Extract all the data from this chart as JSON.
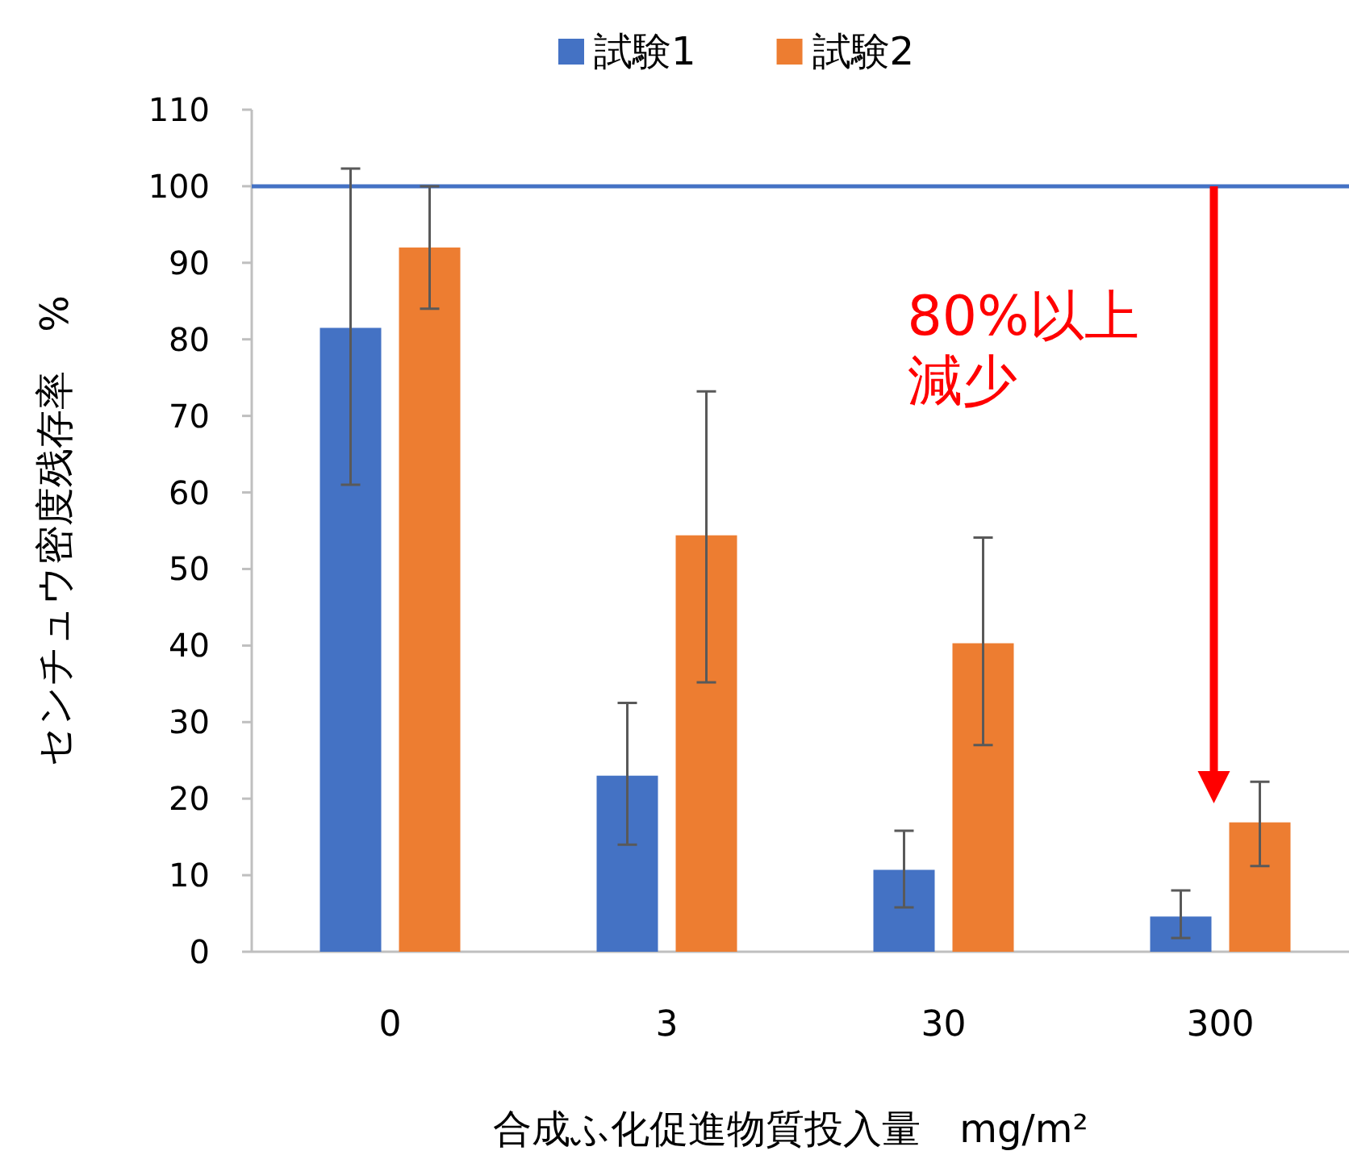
{
  "chart_data": {
    "type": "bar",
    "xlabel": "合成ふ化促進物質投入量　mg/m²",
    "ylabel": "センチュウ密度残存率　%",
    "categories": [
      "0",
      "3",
      "30",
      "300"
    ],
    "series": [
      {
        "name": "試験1",
        "color": "#4472c4",
        "values": [
          81.5,
          23,
          10.7,
          4.6
        ],
        "errors": [
          [
            61,
            102.3
          ],
          [
            14,
            32.5
          ],
          [
            5.8,
            15.8
          ],
          [
            1.8,
            8
          ]
        ]
      },
      {
        "name": "試験2",
        "color": "#ed7d31",
        "values": [
          92,
          54.4,
          40.3,
          16.9
        ],
        "errors": [
          [
            84,
            100
          ],
          [
            35.2,
            73.2
          ],
          [
            27,
            54.1
          ],
          [
            11.2,
            22.2
          ]
        ]
      }
    ],
    "ylim": [
      0,
      110
    ],
    "yticks": [
      0,
      10,
      20,
      30,
      40,
      50,
      60,
      70,
      80,
      90,
      100,
      110
    ],
    "legend": "top",
    "grid": false,
    "ref_lines": [
      {
        "axis": "y",
        "value": 100,
        "color": "#4472c4"
      }
    ],
    "annotations": [
      "80%以上",
      "減少"
    ]
  }
}
